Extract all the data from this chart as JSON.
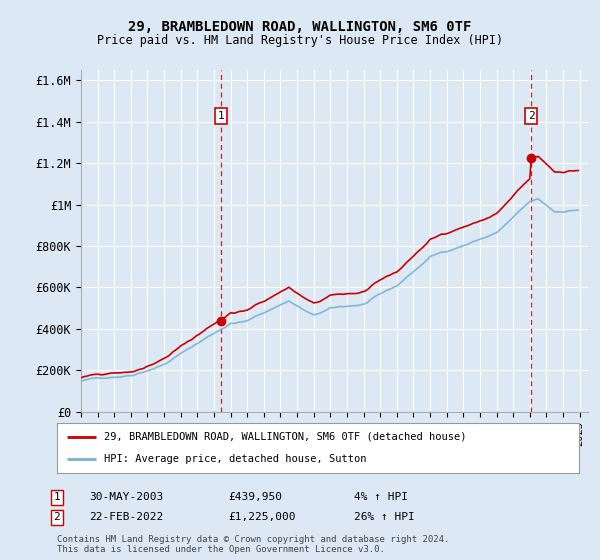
{
  "title": "29, BRAMBLEDOWN ROAD, WALLINGTON, SM6 0TF",
  "subtitle": "Price paid vs. HM Land Registry's House Price Index (HPI)",
  "bg_color": "#dce9f5",
  "plot_bg_color": "#dce9f5",
  "line1_color": "#cc0000",
  "line2_color": "#7ab0d4",
  "purchase1_date": 2003.41,
  "purchase1_price": 439950,
  "purchase2_date": 2022.12,
  "purchase2_price": 1225000,
  "legend1": "29, BRAMBLEDOWN ROAD, WALLINGTON, SM6 0TF (detached house)",
  "legend2": "HPI: Average price, detached house, Sutton",
  "annotation1_date": "30-MAY-2003",
  "annotation1_price": "£439,950",
  "annotation1_hpi": "4% ↑ HPI",
  "annotation2_date": "22-FEB-2022",
  "annotation2_price": "£1,225,000",
  "annotation2_hpi": "26% ↑ HPI",
  "footer": "Contains HM Land Registry data © Crown copyright and database right 2024.\nThis data is licensed under the Open Government Licence v3.0.",
  "ylim_max": 1650000,
  "yticks": [
    0,
    200000,
    400000,
    600000,
    800000,
    1000000,
    1200000,
    1400000,
    1600000
  ],
  "ytick_labels": [
    "£0",
    "£200K",
    "£400K",
    "£600K",
    "£800K",
    "£1M",
    "£1.2M",
    "£1.4M",
    "£1.6M"
  ]
}
